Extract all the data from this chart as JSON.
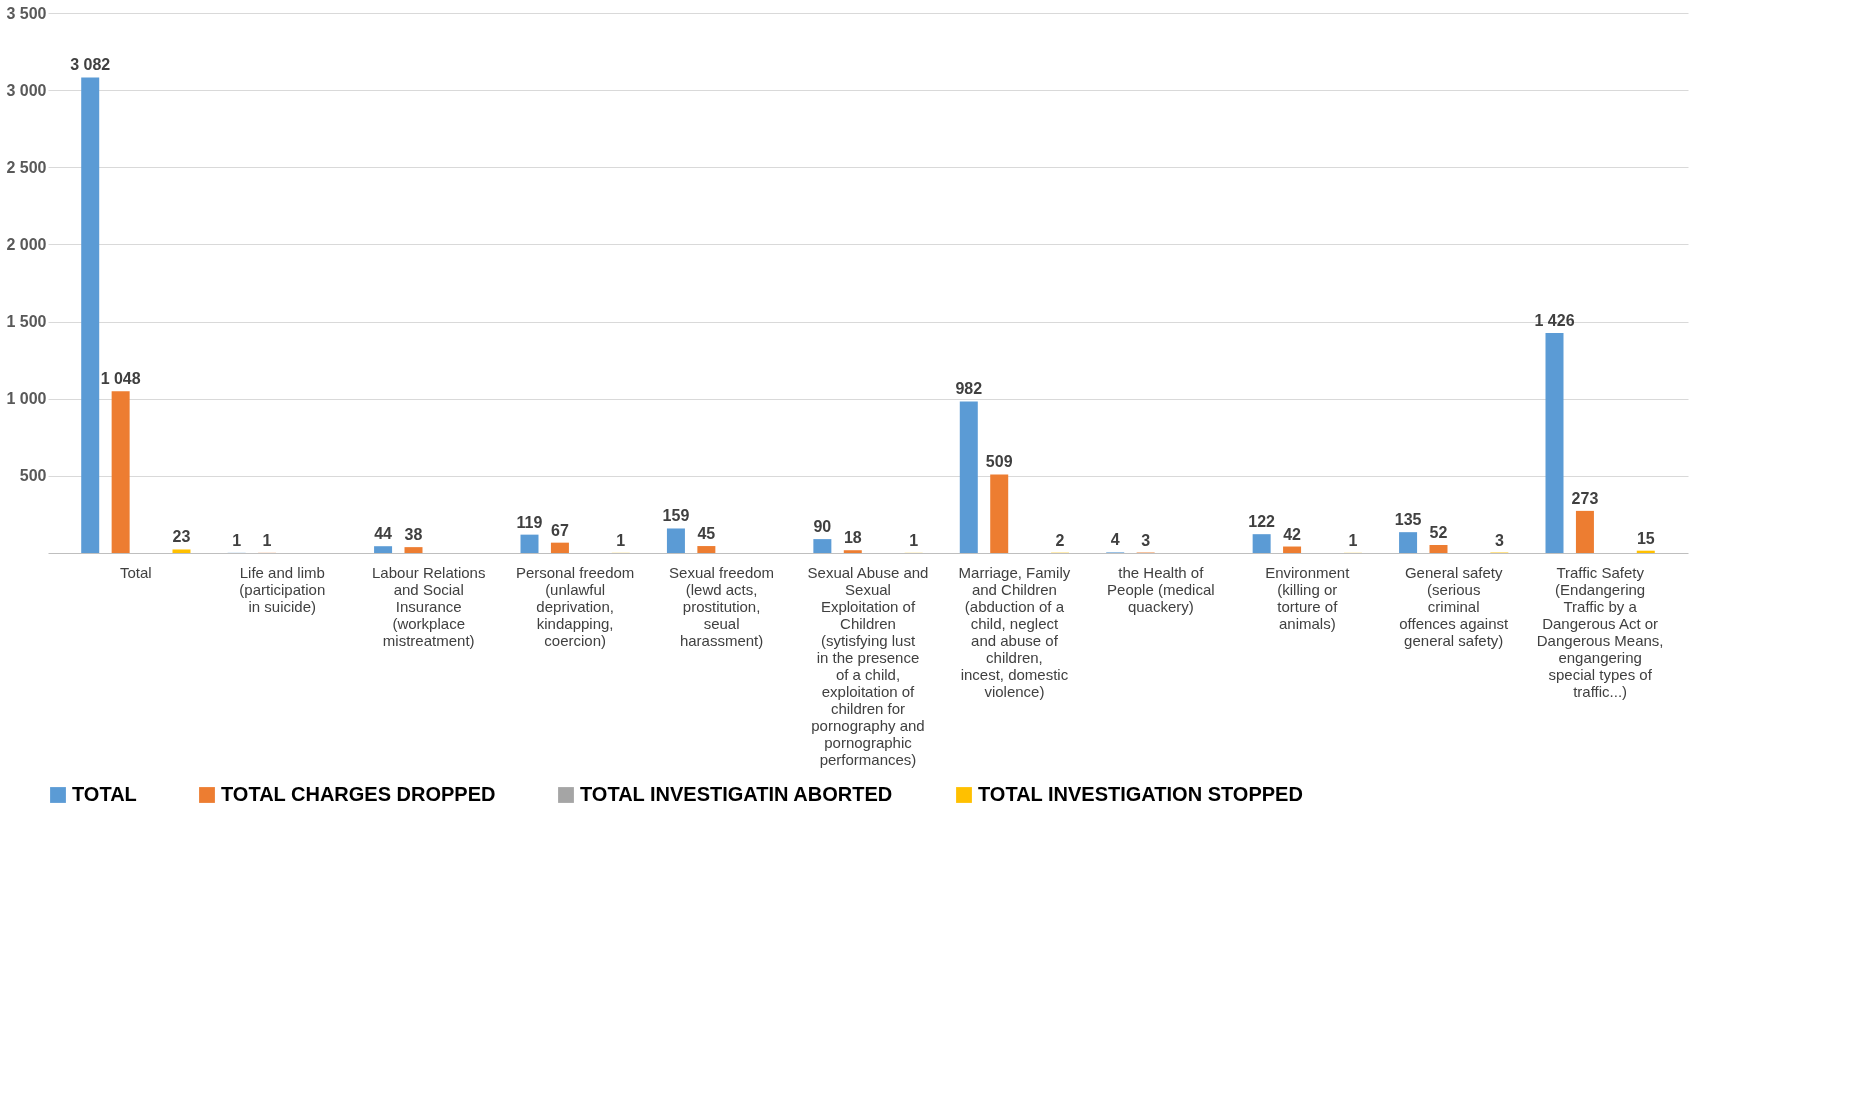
{
  "chart_data": {
    "type": "bar",
    "categories": [
      "Total",
      "Life and limb (participation in suicide)",
      "Labour Relations and Social Insurance (workplace mistreatment)",
      "Personal freedom (unlawful deprivation, kindapping, coercion)",
      "Sexual freedom (lewd acts, prostitution, seual harassment)",
      "Sexual Abuse and Sexual Exploitation of Children (sytisfying lust in the presence of a child, exploitation of children for pornography and pornographic performances)",
      "Marriage, Family and Children (abduction of a child, neglect and abuse of children, incest, domestic violence)",
      "the Health of People (medical quackery)",
      "Environment (killing or torture of animals)",
      "General safety (serious criminal offences against general safety)",
      "Traffic Safety (Endangering Traffic by a Dangerous Act or Dangerous Means, engangering special types of traffic...)"
    ],
    "series": [
      {
        "name": "TOTAL",
        "color": "#5b9bd5",
        "values": [
          3082,
          1,
          44,
          119,
          159,
          90,
          982,
          4,
          122,
          135,
          1426
        ],
        "value_labels": [
          "3 082",
          "1",
          "44",
          "119",
          "159",
          "90",
          "982",
          "4",
          "122",
          "135",
          "1 426"
        ]
      },
      {
        "name": "TOTAL CHARGES DROPPED",
        "color": "#ed7d31",
        "values": [
          1048,
          1,
          38,
          67,
          45,
          18,
          509,
          3,
          42,
          52,
          273
        ],
        "value_labels": [
          "1 048",
          "1",
          "38",
          "67",
          "45",
          "18",
          "509",
          "3",
          "42",
          "52",
          "273"
        ]
      },
      {
        "name": "TOTAL INVESTIGATIN ABORTED",
        "color": "#a5a5a5",
        "values": [
          0,
          0,
          0,
          0,
          0,
          0,
          0,
          0,
          0,
          0,
          0
        ],
        "value_labels": [
          null,
          null,
          null,
          null,
          null,
          null,
          null,
          null,
          null,
          null,
          null
        ]
      },
      {
        "name": "TOTAL INVESTIGATION STOPPED",
        "color": "#ffc000",
        "values": [
          23,
          0,
          0,
          1,
          0,
          1,
          2,
          0,
          1,
          3,
          15
        ],
        "value_labels": [
          "23",
          null,
          null,
          "1",
          null,
          "1",
          "2",
          null,
          "1",
          "3",
          "15"
        ]
      }
    ],
    "ylim": [
      0,
      3500
    ],
    "yticks": [
      {
        "value": 500,
        "label": "500"
      },
      {
        "value": 1000,
        "label": "1 000"
      },
      {
        "value": 1500,
        "label": "1 500"
      },
      {
        "value": 2000,
        "label": "2 000"
      },
      {
        "value": 2500,
        "label": "2 500"
      },
      {
        "value": 3000,
        "label": "3 000"
      },
      {
        "value": 3500,
        "label": "3 500"
      }
    ],
    "grid": "y",
    "legend": "bottom"
  }
}
